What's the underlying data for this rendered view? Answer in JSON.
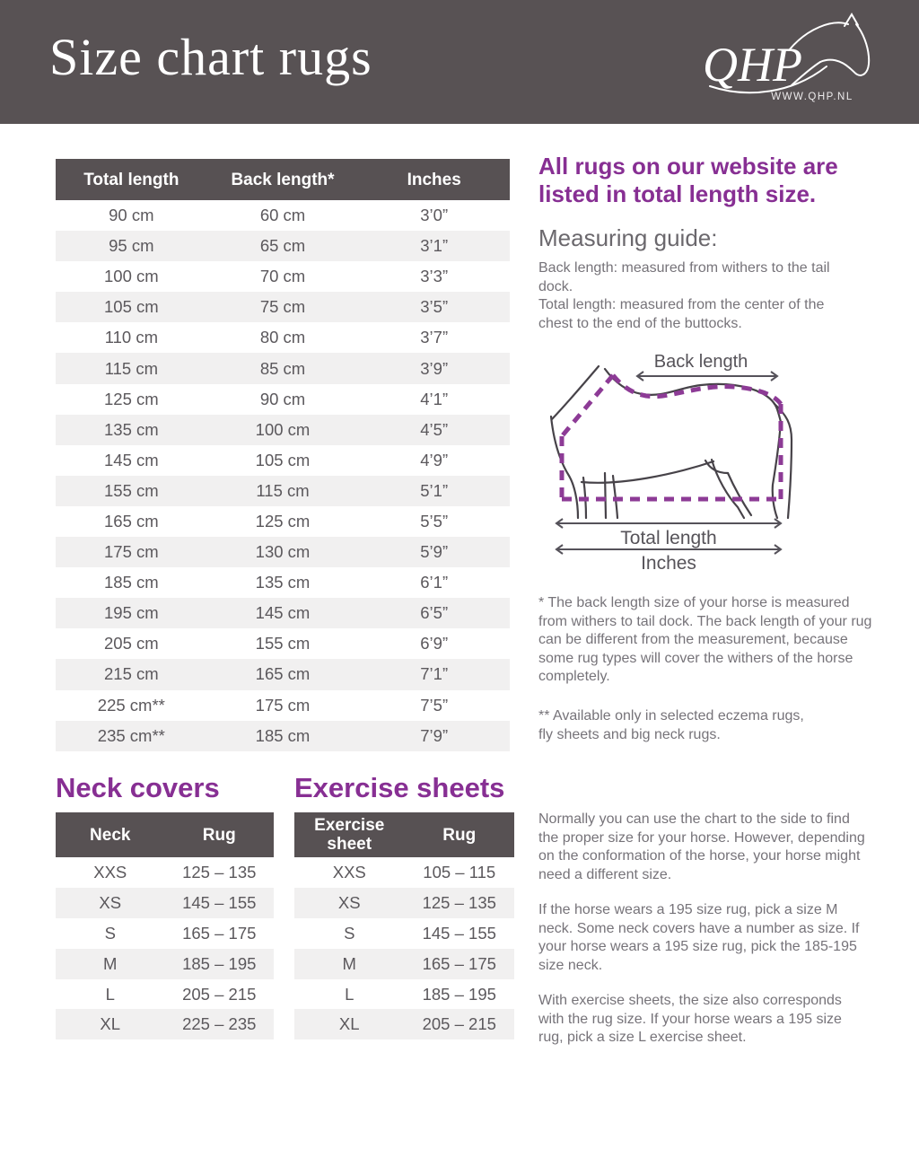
{
  "header": {
    "title": "Size chart rugs",
    "logo_text": "QHP",
    "logo_url": "WWW.QHP.NL"
  },
  "colors": {
    "header_bg": "#585254",
    "table_header_bg": "#575153",
    "row_alt": "#f1f0f0",
    "purple": "#872f93",
    "dash_purple": "#8d3b96",
    "cell_text": "#5b585c",
    "body_text": "#767379"
  },
  "main_table": {
    "columns": [
      "Total length",
      "Back length*",
      "Inches"
    ],
    "rows": [
      [
        "90 cm",
        "60 cm",
        "3’0”"
      ],
      [
        "95 cm",
        "65 cm",
        "3’1”"
      ],
      [
        "100 cm",
        "70 cm",
        "3’3”"
      ],
      [
        "105 cm",
        "75 cm",
        "3’5”"
      ],
      [
        "110 cm",
        "80 cm",
        "3’7”"
      ],
      [
        "115 cm",
        "85 cm",
        "3’9”"
      ],
      [
        "125 cm",
        "90 cm",
        "4’1”"
      ],
      [
        "135 cm",
        "100 cm",
        "4’5”"
      ],
      [
        "145 cm",
        "105 cm",
        "4’9”"
      ],
      [
        "155 cm",
        "115 cm",
        "5’1”"
      ],
      [
        "165 cm",
        "125 cm",
        "5’5”"
      ],
      [
        "175 cm",
        "130 cm",
        "5’9”"
      ],
      [
        "185 cm",
        "135 cm",
        "6’1”"
      ],
      [
        "195 cm",
        "145 cm",
        "6’5”"
      ],
      [
        "205 cm",
        "155 cm",
        "6’9”"
      ],
      [
        "215 cm",
        "165 cm",
        "7’1”"
      ],
      [
        "225 cm**",
        "175 cm",
        "7’5”"
      ],
      [
        "235 cm**",
        "185 cm",
        "7’9”"
      ]
    ]
  },
  "intro": {
    "heading": "All rugs on our website are\nlisted in total length size.",
    "measuring_title": "Measuring guide:",
    "measuring_lines": [
      "Back length: measured from withers to the tail dock.",
      "Total length: measured from the center of the chest to the end of the buttocks."
    ]
  },
  "diagram": {
    "back_length_label": "Back length",
    "total_length_label": "Total length",
    "inches_label": "Inches"
  },
  "footnotes": {
    "single_star": "* The back length size of your horse is measured from withers to tail dock. The back length of your rug can be different from the measurement, because some rug types will cover the withers of the horse completely.",
    "double_star": "** Available only in selected eczema rugs,\nfly sheets and big neck rugs."
  },
  "neck_covers": {
    "title": "Neck covers",
    "columns": [
      "Neck",
      "Rug"
    ],
    "rows": [
      [
        "XXS",
        "125 – 135"
      ],
      [
        "XS",
        "145 – 155"
      ],
      [
        "S",
        "165 – 175"
      ],
      [
        "M",
        "185 – 195"
      ],
      [
        "L",
        "205 – 215"
      ],
      [
        "XL",
        "225 – 235"
      ]
    ]
  },
  "exercise_sheets": {
    "title": "Exercise sheets",
    "columns": [
      "Exercise sheet",
      "Rug"
    ],
    "rows": [
      [
        "XXS",
        "105 – 115"
      ],
      [
        "XS",
        "125 – 135"
      ],
      [
        "S",
        "145 – 155"
      ],
      [
        "M",
        "165 – 175"
      ],
      [
        "L",
        "185 – 195"
      ],
      [
        "XL",
        "205 – 215"
      ]
    ]
  },
  "notes": {
    "paragraphs": [
      "Normally you can use the chart to the side to find the proper size for your horse.  However, depending on the conformation of the horse, your horse might need a different size.",
      "If the horse wears a 195 size rug, pick a size M neck. Some neck covers have a number as size. If your horse wears a 195 size rug, pick the 185-195 size neck.",
      "With exercise sheets, the size also corresponds with the rug size. If your horse wears a 195 size rug, pick a size L exercise sheet."
    ]
  }
}
